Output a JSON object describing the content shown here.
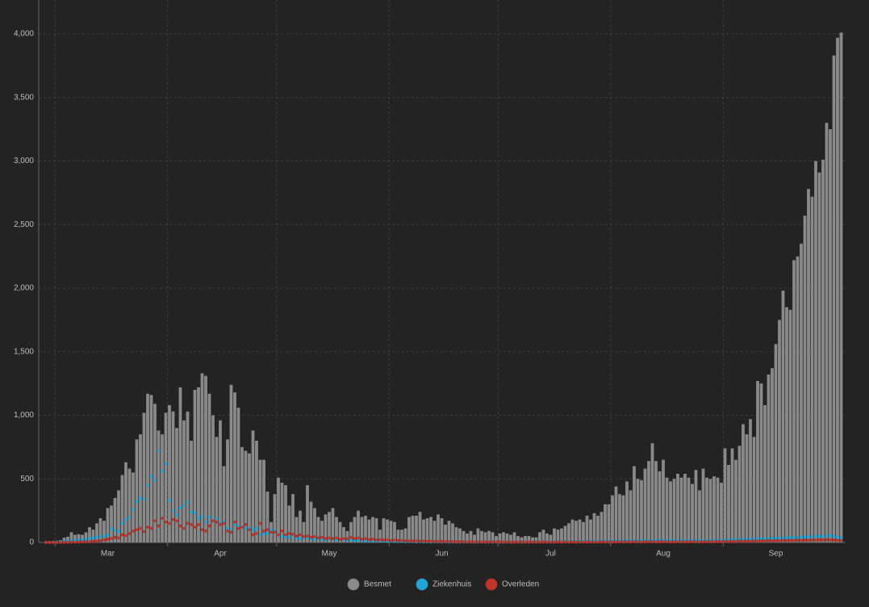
{
  "chart_data": {
    "type": "bar",
    "categories": [
      null,
      null,
      null,
      null,
      null,
      null,
      null,
      null,
      null,
      null,
      null,
      null,
      null,
      null,
      null,
      null,
      null,
      "Mar",
      null,
      null,
      null,
      null,
      null,
      null,
      null,
      null,
      null,
      null,
      null,
      null,
      null,
      null,
      null,
      null,
      null,
      null,
      null,
      null,
      null,
      null,
      null,
      null,
      null,
      null,
      null,
      null,
      null,
      null,
      "Apr",
      null,
      null,
      null,
      null,
      null,
      null,
      null,
      null,
      null,
      null,
      null,
      null,
      null,
      null,
      null,
      null,
      null,
      null,
      null,
      null,
      null,
      null,
      null,
      null,
      null,
      null,
      null,
      null,
      null,
      "May",
      null,
      null,
      null,
      null,
      null,
      null,
      null,
      null,
      null,
      null,
      null,
      null,
      null,
      null,
      null,
      null,
      null,
      null,
      null,
      null,
      null,
      null,
      null,
      null,
      null,
      null,
      null,
      null,
      null,
      null,
      "Jun",
      null,
      null,
      null,
      null,
      null,
      null,
      null,
      null,
      null,
      null,
      null,
      null,
      null,
      null,
      null,
      null,
      null,
      null,
      null,
      null,
      null,
      null,
      null,
      null,
      null,
      null,
      null,
      null,
      null,
      "Jul",
      null,
      null,
      null,
      null,
      null,
      null,
      null,
      null,
      null,
      null,
      null,
      null,
      null,
      null,
      null,
      null,
      null,
      null,
      null,
      null,
      null,
      null,
      null,
      null,
      null,
      null,
      null,
      null,
      null,
      null,
      "Aug",
      null,
      null,
      null,
      null,
      null,
      null,
      null,
      null,
      null,
      null,
      null,
      null,
      null,
      null,
      null,
      null,
      null,
      null,
      null,
      null,
      null,
      null,
      null,
      null,
      null,
      null,
      null,
      null,
      null,
      null,
      "Sep",
      null,
      null,
      null,
      null,
      null,
      null,
      null,
      null,
      null,
      null,
      null,
      null,
      null,
      null,
      null,
      null,
      null,
      null
    ],
    "series": [
      {
        "name": "Besmet",
        "color": "#8a8a8a",
        "type": "bar",
        "values": [
          1,
          6,
          10,
          8,
          18,
          38,
          45,
          80,
          60,
          65,
          60,
          80,
          120,
          100,
          150,
          190,
          170,
          270,
          290,
          350,
          410,
          530,
          630,
          580,
          550,
          810,
          850,
          1020,
          1170,
          1160,
          1090,
          880,
          850,
          1020,
          1080,
          1030,
          900,
          1220,
          960,
          1030,
          800,
          1200,
          1220,
          1330,
          1310,
          1170,
          1000,
          830,
          960,
          600,
          810,
          1240,
          1180,
          1060,
          750,
          720,
          700,
          880,
          800,
          650,
          650,
          400,
          160,
          380,
          510,
          470,
          450,
          290,
          380,
          200,
          250,
          160,
          450,
          320,
          270,
          200,
          170,
          220,
          240,
          270,
          200,
          160,
          120,
          90,
          160,
          200,
          250,
          200,
          210,
          180,
          200,
          190,
          100,
          190,
          180,
          170,
          160,
          100,
          100,
          110,
          200,
          210,
          210,
          240,
          180,
          190,
          200,
          170,
          220,
          190,
          140,
          170,
          150,
          120,
          110,
          90,
          70,
          90,
          60,
          110,
          90,
          80,
          90,
          80,
          50,
          70,
          80,
          70,
          60,
          80,
          50,
          40,
          50,
          50,
          40,
          40,
          80,
          100,
          70,
          60,
          110,
          100,
          110,
          130,
          150,
          180,
          170,
          180,
          160,
          210,
          180,
          230,
          210,
          240,
          300,
          300,
          370,
          440,
          380,
          370,
          480,
          410,
          600,
          500,
          490,
          580,
          640,
          780,
          640,
          560,
          650,
          510,
          480,
          500,
          540,
          510,
          540,
          510,
          460,
          570,
          410,
          580,
          510,
          500,
          520,
          510,
          470,
          740,
          610,
          740,
          650,
          760,
          930,
          850,
          970,
          830,
          1270,
          1250,
          1080,
          1320,
          1370,
          1560,
          1750,
          1980,
          1850,
          1830,
          2220,
          2250,
          2350,
          2570,
          2780,
          2720,
          3000,
          2910,
          3010,
          3300,
          3250,
          3830,
          3970,
          4010
        ]
      },
      {
        "name": "Ziekenhuis",
        "color": "#1fa6d6",
        "type": "scatter",
        "values": [
          0,
          1,
          2,
          3,
          5,
          8,
          10,
          12,
          15,
          18,
          20,
          25,
          30,
          35,
          40,
          50,
          45,
          60,
          110,
          95,
          85,
          150,
          180,
          200,
          260,
          320,
          350,
          340,
          450,
          520,
          490,
          720,
          560,
          620,
          330,
          250,
          220,
          270,
          290,
          320,
          240,
          230,
          190,
          200,
          160,
          200,
          170,
          190,
          150,
          160,
          110,
          100,
          140,
          120,
          120,
          110,
          110,
          100,
          110,
          60,
          70,
          70,
          100,
          90,
          60,
          50,
          45,
          40,
          60,
          35,
          30,
          40,
          35,
          30,
          25,
          30,
          25,
          20,
          30,
          25,
          20,
          25,
          20,
          18,
          20,
          15,
          18,
          15,
          12,
          15,
          12,
          10,
          12,
          10,
          8,
          10,
          8,
          7,
          8,
          6,
          7,
          6,
          5,
          6,
          5,
          5,
          4,
          5,
          4,
          4,
          4,
          3,
          4,
          3,
          3,
          4,
          3,
          3,
          2,
          3,
          3,
          2,
          3,
          2,
          3,
          2,
          2,
          3,
          2,
          2,
          3,
          2,
          3,
          3,
          4,
          3,
          4,
          5,
          4,
          5,
          5,
          6,
          5,
          6,
          7,
          6,
          7,
          8,
          7,
          8,
          8,
          9,
          10,
          9,
          10,
          11,
          10,
          12,
          11,
          12,
          13,
          12,
          14,
          13,
          15,
          14,
          13,
          15,
          14,
          16,
          15,
          14,
          16,
          15,
          14,
          13,
          15,
          14,
          16,
          15,
          14,
          15,
          13,
          14,
          15,
          16,
          14,
          18,
          20,
          19,
          22,
          21,
          24,
          23,
          25,
          26,
          28,
          27,
          30,
          29,
          32,
          31,
          35,
          33,
          38,
          36,
          40,
          39,
          42,
          41,
          45,
          44,
          48,
          50,
          46,
          52,
          55,
          48,
          40,
          35
        ]
      },
      {
        "name": "Overleden",
        "color": "#c0342c",
        "type": "scatter",
        "values": [
          0,
          0,
          0,
          0,
          0,
          1,
          1,
          2,
          2,
          3,
          4,
          5,
          5,
          8,
          10,
          12,
          20,
          25,
          30,
          40,
          35,
          60,
          55,
          70,
          90,
          100,
          110,
          85,
          120,
          110,
          170,
          130,
          190,
          160,
          150,
          180,
          170,
          130,
          110,
          150,
          140,
          120,
          140,
          100,
          90,
          130,
          170,
          160,
          140,
          150,
          90,
          80,
          160,
          110,
          120,
          140,
          100,
          60,
          70,
          150,
          90,
          100,
          80,
          80,
          60,
          90,
          60,
          70,
          65,
          50,
          60,
          45,
          50,
          40,
          45,
          35,
          40,
          30,
          35,
          30,
          35,
          25,
          30,
          28,
          40,
          30,
          35,
          25,
          30,
          22,
          25,
          20,
          22,
          18,
          20,
          15,
          18,
          14,
          15,
          12,
          12,
          10,
          11,
          9,
          10,
          8,
          9,
          8,
          7,
          8,
          6,
          7,
          6,
          5,
          6,
          5,
          4,
          5,
          4,
          4,
          4,
          3,
          4,
          3,
          3,
          4,
          3,
          2,
          3,
          2,
          2,
          3,
          2,
          2,
          3,
          2,
          2,
          3,
          2,
          2,
          2,
          3,
          2,
          3,
          2,
          3,
          2,
          3,
          3,
          2,
          3,
          2,
          3,
          4,
          3,
          4,
          3,
          4,
          5,
          4,
          5,
          4,
          6,
          5,
          4,
          5,
          6,
          5,
          4,
          5,
          6,
          5,
          4,
          5,
          6,
          5,
          4,
          5,
          6,
          5,
          4,
          5,
          6,
          5,
          6,
          7,
          6,
          7,
          8,
          7,
          8,
          9,
          8,
          10,
          9,
          11,
          10,
          12,
          11,
          13,
          12,
          14,
          13,
          15,
          14,
          16,
          15,
          17,
          16,
          18,
          17,
          19,
          18,
          20,
          19,
          21,
          20,
          18,
          16,
          15
        ]
      }
    ],
    "ylim": [
      0,
      4200
    ],
    "yticks": [
      0,
      500,
      {
        "value": 1000,
        "label": "1,000"
      },
      {
        "value": 1500,
        "label": "1,500"
      },
      {
        "value": 2000,
        "label": "2,000"
      },
      {
        "value": 2500,
        "label": "2,500"
      },
      {
        "value": 3000,
        "label": "3,000"
      },
      {
        "value": 3500,
        "label": "3,500"
      },
      {
        "value": 4000,
        "label": "4,000"
      }
    ],
    "grid": true
  }
}
